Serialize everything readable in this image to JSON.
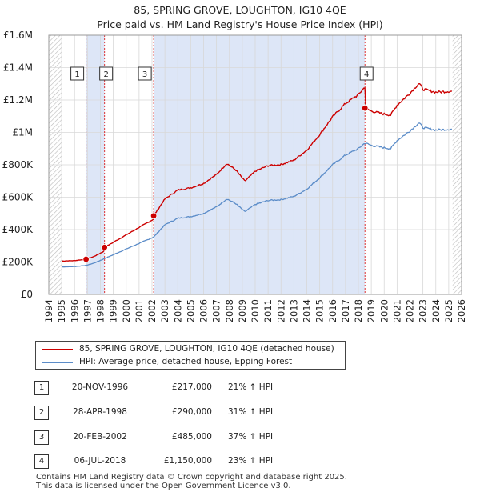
{
  "title_line1": "85, SPRING GROVE, LOUGHTON, IG10 4QE",
  "title_line2": "Price paid vs. HM Land Registry's House Price Index (HPI)",
  "legend": [
    {
      "label": "85, SPRING GROVE, LOUGHTON, IG10 4QE (detached house)",
      "color": "#cc0000"
    },
    {
      "label": "HPI: Average price, detached house, Epping Forest",
      "color": "#5b8cc8"
    }
  ],
  "transactions": [
    {
      "num": "1",
      "date": "20-NOV-1996",
      "price": "£217,000",
      "hpi": "21% ↑ HPI"
    },
    {
      "num": "2",
      "date": "28-APR-1998",
      "price": "£290,000",
      "hpi": "31% ↑ HPI"
    },
    {
      "num": "3",
      "date": "20-FEB-2002",
      "price": "£485,000",
      "hpi": "37% ↑ HPI"
    },
    {
      "num": "4",
      "date": "06-JUL-2018",
      "price": "£1,150,000",
      "hpi": "23% ↑ HPI"
    }
  ],
  "footer_line1": "Contains HM Land Registry data © Crown copyright and database right 2025.",
  "footer_line2": "This data is licensed under the Open Government Licence v3.0.",
  "chart_data": {
    "type": "line",
    "xlim": [
      1994,
      2026
    ],
    "ylim": [
      0,
      1600000
    ],
    "x_ticks": [
      1994,
      1995,
      1996,
      1997,
      1998,
      1999,
      2000,
      2001,
      2002,
      2003,
      2004,
      2005,
      2006,
      2007,
      2008,
      2009,
      2010,
      2011,
      2012,
      2013,
      2014,
      2015,
      2016,
      2017,
      2018,
      2019,
      2020,
      2021,
      2022,
      2023,
      2024,
      2025,
      2026
    ],
    "y_ticks": [
      {
        "value": 0,
        "label": "£0"
      },
      {
        "value": 200000,
        "label": "£200K"
      },
      {
        "value": 400000,
        "label": "£400K"
      },
      {
        "value": 600000,
        "label": "£600K"
      },
      {
        "value": 800000,
        "label": "£800K"
      },
      {
        "value": 1000000,
        "label": "£1M"
      },
      {
        "value": 1200000,
        "label": "£1.2M"
      },
      {
        "value": 1400000,
        "label": "£1.4M"
      },
      {
        "value": 1600000,
        "label": "£1.6M"
      }
    ],
    "data_start": 1995,
    "data_end": 2025.3,
    "shaded_ranges": [
      [
        1996.89,
        1998.32
      ],
      [
        2002.13,
        2018.51
      ]
    ],
    "hatched_ranges": [
      [
        1994,
        1995
      ],
      [
        2025.3,
        2026
      ]
    ],
    "sales": [
      {
        "num": "1",
        "x": 1996.89,
        "y": 217000
      },
      {
        "num": "2",
        "x": 1998.32,
        "y": 290000
      },
      {
        "num": "3",
        "x": 2002.13,
        "y": 485000
      },
      {
        "num": "4",
        "x": 2018.51,
        "y": 1150000
      }
    ],
    "series": [
      {
        "name": "HPI: Average price, detached house, Epping Forest",
        "color": "#5b8cc8",
        "x": [
          1995,
          1996,
          1996.89,
          1997.5,
          1998.32,
          1999,
          2000,
          2001,
          2002.13,
          2003,
          2004,
          2005,
          2006,
          2007,
          2007.8,
          2008.5,
          2009.2,
          2010,
          2011,
          2012,
          2013,
          2014,
          2015,
          2016,
          2017,
          2018,
          2018.51,
          2019,
          2020,
          2020.5,
          2021,
          2022,
          2022.7,
          2023,
          2024,
          2025.2
        ],
        "y": [
          170000,
          172000,
          179000,
          193000,
          221000,
          245000,
          280000,
          315000,
          354000,
          430000,
          470000,
          480000,
          500000,
          540000,
          590000,
          560000,
          510000,
          555000,
          580000,
          585000,
          605000,
          650000,
          720000,
          800000,
          860000,
          900000,
          935000,
          920000,
          905000,
          900000,
          950000,
          1010000,
          1060000,
          1030000,
          1015000,
          1020000
        ]
      }
    ]
  }
}
